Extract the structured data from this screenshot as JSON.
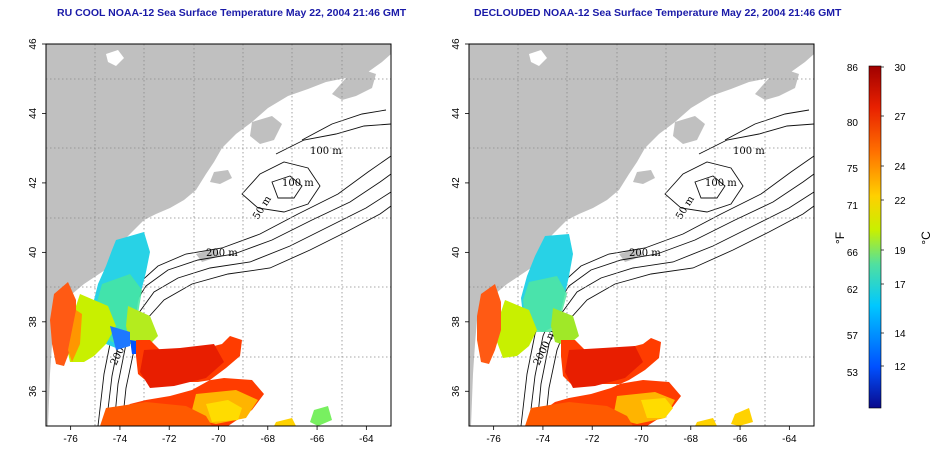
{
  "panels": [
    {
      "id": "left",
      "title": "RU COOL NOAA-12 Sea Surface Temperature May 22, 2004 21:46 GMT"
    },
    {
      "id": "right",
      "title": "DECLOUDED NOAA-12 Sea Surface Temperature May 22, 2004 21:46 GMT"
    }
  ],
  "map": {
    "lon_ticks": [
      "-76",
      "-74",
      "-72",
      "-70",
      "-68",
      "-66",
      "-64"
    ],
    "lat_ticks": [
      "36",
      "38",
      "40",
      "42",
      "44",
      "46"
    ],
    "lon_range": [
      -77,
      -63
    ],
    "lat_range": [
      35,
      46
    ],
    "land_color": "#c0c0c0",
    "ocean_color": "#ffffff",
    "grid_style": "dotted",
    "contour_labels": [
      "100 m",
      "100 m",
      "50 m",
      "200 m",
      "50 m",
      "2000 m"
    ]
  },
  "colorbar": {
    "fahrenheit_ticks": [
      "86",
      "80",
      "75",
      "71",
      "66",
      "62",
      "57",
      "53"
    ],
    "celsius_ticks": [
      "30",
      "27",
      "24",
      "22",
      "19",
      "17",
      "14",
      "12"
    ],
    "fahrenheit_unit": "°F",
    "celsius_unit": "°C",
    "colors": [
      "#0a0a8c",
      "#0050ff",
      "#00c8ff",
      "#50e0a0",
      "#c8f000",
      "#ffd000",
      "#ff7000",
      "#e82000",
      "#a00000"
    ]
  }
}
